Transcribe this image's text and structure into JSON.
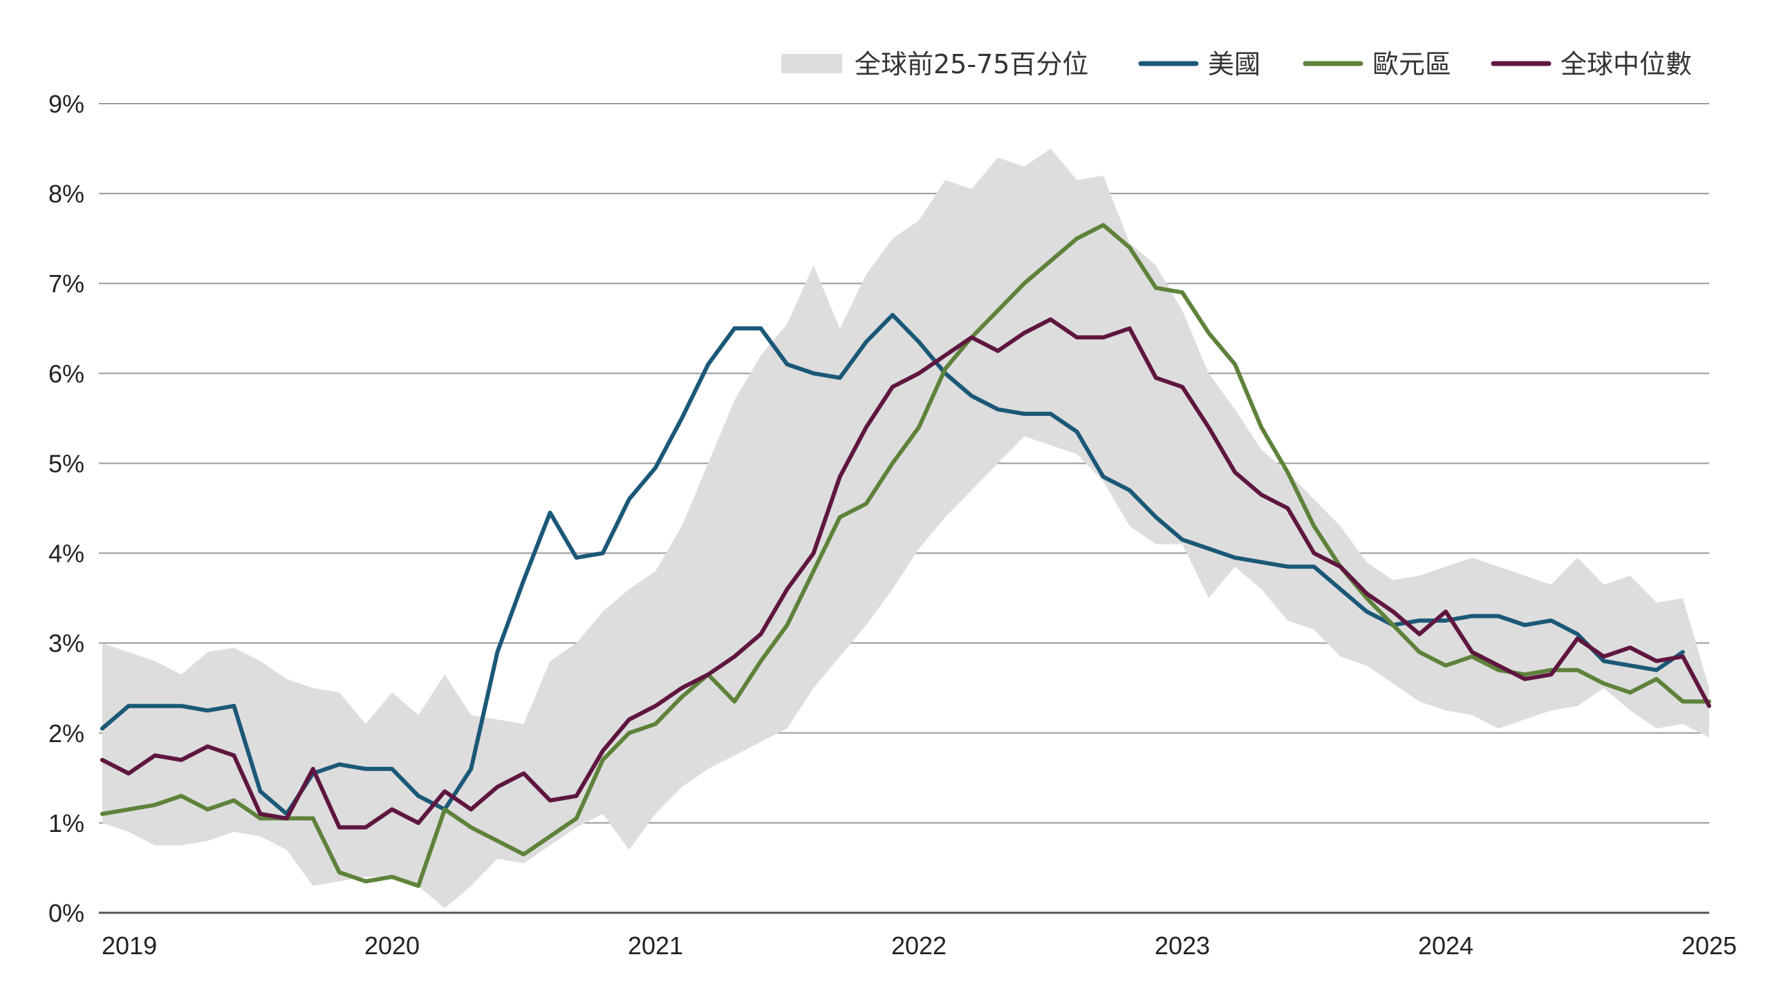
{
  "chart_data": {
    "type": "line",
    "title": "",
    "xlabel": "",
    "ylabel": "",
    "x_ticks": [
      "2019",
      "2020",
      "2021",
      "2022",
      "2023",
      "2024",
      "2025"
    ],
    "y_ticks": [
      "0%",
      "1%",
      "2%",
      "3%",
      "4%",
      "5%",
      "6%",
      "7%",
      "8%",
      "9%"
    ],
    "xlim": [
      2018.9,
      2025.0
    ],
    "ylim": [
      0,
      9
    ],
    "grid": "horizontal",
    "legend_position": "top-right",
    "band": {
      "name": "全球前25-75百分位",
      "color": "#dddddd",
      "x": [
        2018.9,
        2019.0,
        2019.1,
        2019.2,
        2019.3,
        2019.4,
        2019.5,
        2019.6,
        2019.7,
        2019.8,
        2019.9,
        2020.0,
        2020.1,
        2020.2,
        2020.3,
        2020.4,
        2020.5,
        2020.6,
        2020.7,
        2020.8,
        2020.9,
        2021.0,
        2021.1,
        2021.2,
        2021.3,
        2021.4,
        2021.5,
        2021.6,
        2021.7,
        2021.8,
        2021.9,
        2022.0,
        2022.1,
        2022.2,
        2022.3,
        2022.4,
        2022.5,
        2022.6,
        2022.7,
        2022.8,
        2022.9,
        2023.0,
        2023.1,
        2023.2,
        2023.3,
        2023.4,
        2023.5,
        2023.6,
        2023.7,
        2023.8,
        2023.9,
        2024.0,
        2024.1,
        2024.2,
        2024.3,
        2024.4,
        2024.5,
        2024.6,
        2024.7,
        2024.8,
        2024.9,
        2025.0
      ],
      "upper": [
        3.0,
        2.9,
        2.8,
        2.65,
        2.9,
        2.95,
        2.8,
        2.6,
        2.5,
        2.45,
        2.1,
        2.45,
        2.2,
        2.65,
        2.2,
        2.15,
        2.1,
        2.8,
        3.0,
        3.35,
        3.6,
        3.8,
        4.3,
        5.0,
        5.7,
        6.2,
        6.55,
        7.2,
        6.5,
        7.1,
        7.5,
        7.7,
        8.15,
        8.05,
        8.4,
        8.3,
        8.5,
        8.15,
        8.2,
        7.45,
        7.2,
        6.7,
        6.0,
        5.6,
        5.15,
        4.9,
        4.6,
        4.3,
        3.9,
        3.7,
        3.75,
        3.85,
        3.95,
        3.85,
        3.75,
        3.65,
        3.95,
        3.65,
        3.75,
        3.45,
        3.5,
        2.5
      ],
      "lower": [
        1.0,
        0.9,
        0.75,
        0.75,
        0.8,
        0.9,
        0.85,
        0.7,
        0.3,
        0.35,
        0.4,
        0.4,
        0.3,
        0.05,
        0.3,
        0.6,
        0.55,
        0.75,
        0.95,
        1.1,
        0.7,
        1.1,
        1.4,
        1.6,
        1.75,
        1.9,
        2.05,
        2.5,
        2.85,
        3.2,
        3.6,
        4.05,
        4.4,
        4.7,
        5.0,
        5.3,
        5.2,
        5.1,
        4.8,
        4.3,
        4.1,
        4.1,
        3.5,
        3.85,
        3.6,
        3.25,
        3.15,
        2.85,
        2.75,
        2.55,
        2.35,
        2.25,
        2.2,
        2.05,
        2.15,
        2.25,
        2.3,
        2.5,
        2.25,
        2.05,
        2.1,
        1.95
      ]
    },
    "series": [
      {
        "name": "美國",
        "color": "#1b5878",
        "x": [
          2018.9,
          2019.0,
          2019.1,
          2019.2,
          2019.3,
          2019.4,
          2019.5,
          2019.6,
          2019.7,
          2019.8,
          2019.9,
          2020.0,
          2020.1,
          2020.2,
          2020.3,
          2020.4,
          2020.5,
          2020.6,
          2020.7,
          2020.8,
          2020.9,
          2021.0,
          2021.1,
          2021.2,
          2021.3,
          2021.4,
          2021.5,
          2021.6,
          2021.7,
          2021.8,
          2021.9,
          2022.0,
          2022.1,
          2022.2,
          2022.3,
          2022.4,
          2022.5,
          2022.6,
          2022.7,
          2022.8,
          2022.9,
          2023.0,
          2023.1,
          2023.2,
          2023.3,
          2023.4,
          2023.5,
          2023.6,
          2023.7,
          2023.8,
          2023.9,
          2024.0,
          2024.1,
          2024.2,
          2024.3,
          2024.4,
          2024.5,
          2024.6,
          2024.7,
          2024.8,
          2024.9
        ],
        "values": [
          2.05,
          2.3,
          2.3,
          2.3,
          2.25,
          2.3,
          1.35,
          1.1,
          1.55,
          1.65,
          1.6,
          1.6,
          1.3,
          1.15,
          1.6,
          2.9,
          3.7,
          4.45,
          3.95,
          4.0,
          4.6,
          4.95,
          5.5,
          6.1,
          6.5,
          6.5,
          6.1,
          6.0,
          5.95,
          6.35,
          6.65,
          6.35,
          6.0,
          5.75,
          5.6,
          5.55,
          5.55,
          5.35,
          4.85,
          4.7,
          4.4,
          4.15,
          4.05,
          3.95,
          3.9,
          3.85,
          3.85,
          3.6,
          3.35,
          3.2,
          3.25,
          3.25,
          3.3,
          3.3,
          3.2,
          3.25,
          3.1,
          2.8,
          2.75,
          2.7,
          2.9
        ]
      },
      {
        "name": "歐元區",
        "color": "#5e823a",
        "x": [
          2018.9,
          2019.0,
          2019.1,
          2019.2,
          2019.3,
          2019.4,
          2019.5,
          2019.6,
          2019.7,
          2019.8,
          2019.9,
          2020.0,
          2020.1,
          2020.2,
          2020.3,
          2020.4,
          2020.5,
          2020.6,
          2020.7,
          2020.8,
          2020.9,
          2021.0,
          2021.1,
          2021.2,
          2021.3,
          2021.4,
          2021.5,
          2021.6,
          2021.7,
          2021.8,
          2021.9,
          2022.0,
          2022.1,
          2022.2,
          2022.3,
          2022.4,
          2022.5,
          2022.6,
          2022.7,
          2022.8,
          2022.9,
          2023.0,
          2023.1,
          2023.2,
          2023.3,
          2023.4,
          2023.5,
          2023.6,
          2023.7,
          2023.8,
          2023.9,
          2024.0,
          2024.1,
          2024.2,
          2024.3,
          2024.4,
          2024.5,
          2024.6,
          2024.7,
          2024.8,
          2024.9,
          2025.0
        ],
        "values": [
          1.1,
          1.15,
          1.2,
          1.3,
          1.15,
          1.25,
          1.05,
          1.05,
          1.05,
          0.45,
          0.35,
          0.4,
          0.3,
          1.15,
          0.95,
          0.8,
          0.65,
          0.85,
          1.05,
          1.7,
          2.0,
          2.1,
          2.4,
          2.65,
          2.35,
          2.8,
          3.2,
          3.8,
          4.4,
          4.55,
          5.0,
          5.4,
          6.05,
          6.4,
          6.7,
          7.0,
          7.25,
          7.5,
          7.65,
          7.4,
          6.95,
          6.9,
          6.45,
          6.1,
          5.4,
          4.9,
          4.3,
          3.85,
          3.5,
          3.2,
          2.9,
          2.75,
          2.85,
          2.7,
          2.65,
          2.7,
          2.7,
          2.55,
          2.45,
          2.6,
          2.35,
          2.35
        ]
      },
      {
        "name": "全球中位數",
        "color": "#5e1640",
        "x": [
          2018.9,
          2019.0,
          2019.1,
          2019.2,
          2019.3,
          2019.4,
          2019.5,
          2019.6,
          2019.7,
          2019.8,
          2019.9,
          2020.0,
          2020.1,
          2020.2,
          2020.3,
          2020.4,
          2020.5,
          2020.6,
          2020.7,
          2020.8,
          2020.9,
          2021.0,
          2021.1,
          2021.2,
          2021.3,
          2021.4,
          2021.5,
          2021.6,
          2021.7,
          2021.8,
          2021.9,
          2022.0,
          2022.1,
          2022.2,
          2022.3,
          2022.4,
          2022.5,
          2022.6,
          2022.7,
          2022.8,
          2022.9,
          2023.0,
          2023.1,
          2023.2,
          2023.3,
          2023.4,
          2023.5,
          2023.6,
          2023.7,
          2023.8,
          2023.9,
          2024.0,
          2024.1,
          2024.2,
          2024.3,
          2024.4,
          2024.5,
          2024.6,
          2024.7,
          2024.8,
          2024.9,
          2025.0
        ],
        "values": [
          1.7,
          1.55,
          1.75,
          1.7,
          1.85,
          1.75,
          1.1,
          1.05,
          1.6,
          0.95,
          0.95,
          1.15,
          1.0,
          1.35,
          1.15,
          1.4,
          1.55,
          1.25,
          1.3,
          1.8,
          2.15,
          2.3,
          2.5,
          2.65,
          2.85,
          3.1,
          3.6,
          4.0,
          4.85,
          5.4,
          5.85,
          6.0,
          6.2,
          6.4,
          6.25,
          6.45,
          6.6,
          6.4,
          6.4,
          6.5,
          5.95,
          5.85,
          5.4,
          4.9,
          4.65,
          4.5,
          4.0,
          3.85,
          3.55,
          3.35,
          3.1,
          3.35,
          2.9,
          2.75,
          2.6,
          2.65,
          3.05,
          2.85,
          2.95,
          2.8,
          2.85,
          2.3
        ]
      }
    ]
  }
}
